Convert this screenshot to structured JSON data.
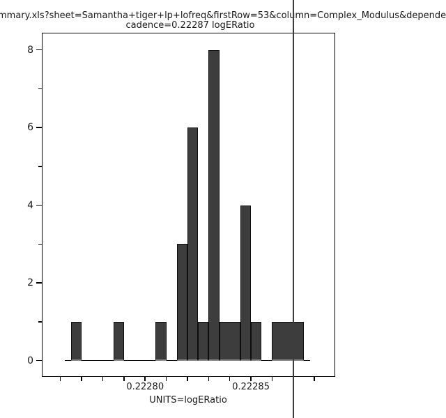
{
  "title": {
    "line1": "mmary.xls?sheet=Samantha+tiger+lp+lofreq&firstRow=53&column=Complex_Modulus&depende",
    "line2": "cadence=0.22287 logERatio"
  },
  "colors": {
    "background": "#ffffff",
    "bar_fill": "#3d3d3d",
    "bar_edge": "#0d0d0d",
    "bar_base_strip": "#8f8f8f",
    "axis": "#000000",
    "marker_line": "#3c3c3c",
    "text": "#1a1a1a"
  },
  "chart_data": {
    "type": "bar",
    "subtype": "histogram",
    "title": "cadence=0.22287 logERatio",
    "xlabel": "UNITS=logERatio",
    "ylabel": "",
    "grid": false,
    "legend": null,
    "xlim": [
      0.2227512,
      0.2228898
    ],
    "ylim": [
      -0.42,
      8.44
    ],
    "bin_width": 5e-06,
    "bins": [
      {
        "x0": 0.222765,
        "x1": 0.22277,
        "count": 1
      },
      {
        "x0": 0.222785,
        "x1": 0.22279,
        "count": 1
      },
      {
        "x0": 0.222805,
        "x1": 0.22281,
        "count": 1
      },
      {
        "x0": 0.222815,
        "x1": 0.22282,
        "count": 3
      },
      {
        "x0": 0.22282,
        "x1": 0.222825,
        "count": 6
      },
      {
        "x0": 0.222825,
        "x1": 0.22283,
        "count": 1
      },
      {
        "x0": 0.22283,
        "x1": 0.222835,
        "count": 8
      },
      {
        "x0": 0.222835,
        "x1": 0.222845,
        "count": 1
      },
      {
        "x0": 0.222845,
        "x1": 0.22285,
        "count": 4
      },
      {
        "x0": 0.22285,
        "x1": 0.222855,
        "count": 1
      },
      {
        "x0": 0.22286,
        "x1": 0.222875,
        "count": 1
      }
    ],
    "baseline_extent": [
      0.222762,
      0.222878
    ],
    "marker_x": 0.22287,
    "x_ticks": [
      0.22276,
      0.22277,
      0.22278,
      0.22279,
      0.2228,
      0.22281,
      0.22282,
      0.22283,
      0.22284,
      0.22285,
      0.22286,
      0.22287,
      0.22288
    ],
    "x_tick_labels": [
      {
        "value": 0.2228,
        "label": "0.22280"
      },
      {
        "value": 0.22285,
        "label": "0.22285"
      }
    ],
    "y_ticks_major": [
      {
        "value": 0,
        "label": "0"
      },
      {
        "value": 2,
        "label": "2"
      },
      {
        "value": 4,
        "label": "4"
      },
      {
        "value": 6,
        "label": "6"
      },
      {
        "value": 8,
        "label": "8"
      }
    ],
    "y_ticks_minor": [
      1,
      3,
      5,
      7
    ]
  }
}
